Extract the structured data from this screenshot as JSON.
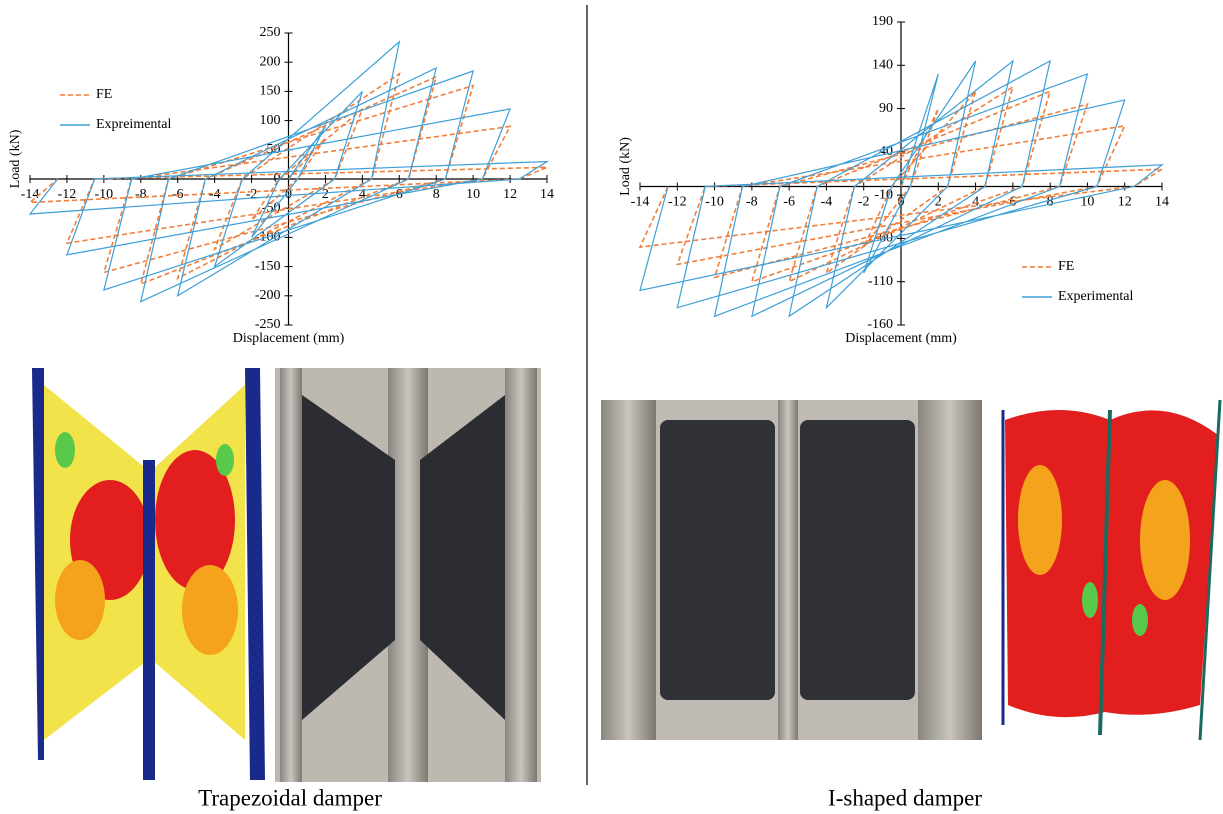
{
  "chart_data": [
    {
      "type": "line",
      "x_label": "Displacement (mm)",
      "y_label": "Load (kN)",
      "xlim": [
        -14,
        14
      ],
      "xticks": [
        -14,
        -12,
        -10,
        -8,
        -6,
        -4,
        -2,
        0,
        2,
        4,
        6,
        8,
        10,
        12,
        14
      ],
      "ylim": [
        -250,
        250
      ],
      "yticks": [
        -250,
        -200,
        -150,
        -100,
        -50,
        0,
        50,
        100,
        150,
        200,
        250
      ],
      "legend": "upper-left",
      "x": [
        0,
        2,
        0.5,
        -2,
        -0.5,
        4,
        2.5,
        -4,
        -2.5,
        6,
        4.5,
        -6,
        -4.5,
        8,
        6.5,
        -8,
        -6.5,
        10,
        8.5,
        -10,
        -8.5,
        12,
        10.5,
        -12,
        -10.5,
        14,
        12.5,
        -14,
        -12.5
      ],
      "series": [
        {
          "name": "FE",
          "color": "#f07f3c",
          "dashed": true,
          "values": [
            0,
            70,
            0,
            -70,
            0,
            120,
            0,
            -120,
            0,
            180,
            0,
            -170,
            0,
            175,
            0,
            -180,
            0,
            160,
            0,
            -160,
            0,
            90,
            0,
            -110,
            0,
            20,
            0,
            -40,
            0
          ]
        },
        {
          "name": "Expreimental",
          "color": "#3d9fd8",
          "dashed": false,
          "values": [
            0,
            90,
            0,
            -100,
            0,
            150,
            0,
            -150,
            0,
            235,
            0,
            -200,
            0,
            190,
            0,
            -210,
            0,
            185,
            0,
            -190,
            0,
            120,
            0,
            -130,
            0,
            30,
            0,
            -60,
            0
          ]
        }
      ]
    },
    {
      "type": "line",
      "x_label": "Displacement (mm)",
      "y_label": "Load (kN)",
      "xlim": [
        -14,
        14
      ],
      "xticks": [
        -14,
        -12,
        -10,
        -8,
        -6,
        -4,
        -2,
        0,
        2,
        4,
        6,
        8,
        10,
        12,
        14
      ],
      "ylim": [
        -160,
        190
      ],
      "yticks": [
        -160,
        -110,
        -60,
        -10,
        40,
        90,
        140,
        190
      ],
      "legend": "lower-right",
      "x": [
        0,
        2,
        0.5,
        -2,
        -0.5,
        4,
        2.5,
        -4,
        -2.5,
        6,
        4.5,
        -6,
        -4.5,
        8,
        6.5,
        -8,
        -6.5,
        10,
        8.5,
        -10,
        -8.5,
        12,
        10.5,
        -12,
        -10.5,
        14,
        12.5,
        -14,
        -12.5
      ],
      "series": [
        {
          "name": "FE",
          "color": "#f07f3c",
          "dashed": true,
          "values": [
            0,
            90,
            0,
            -70,
            0,
            110,
            0,
            -100,
            0,
            115,
            0,
            -110,
            0,
            110,
            0,
            -110,
            0,
            95,
            0,
            -105,
            0,
            70,
            0,
            -90,
            0,
            20,
            0,
            -70,
            0
          ]
        },
        {
          "name": "Experimental",
          "color": "#3d9fd8",
          "dashed": false,
          "values": [
            0,
            130,
            0,
            -100,
            0,
            145,
            0,
            -140,
            0,
            145,
            0,
            -150,
            0,
            145,
            0,
            -150,
            0,
            130,
            0,
            -150,
            0,
            100,
            0,
            -140,
            0,
            25,
            0,
            -120,
            0
          ]
        }
      ]
    }
  ],
  "panels": [
    {
      "caption": "Trapezoidal damper"
    },
    {
      "caption": "I-shaped damper"
    }
  ]
}
